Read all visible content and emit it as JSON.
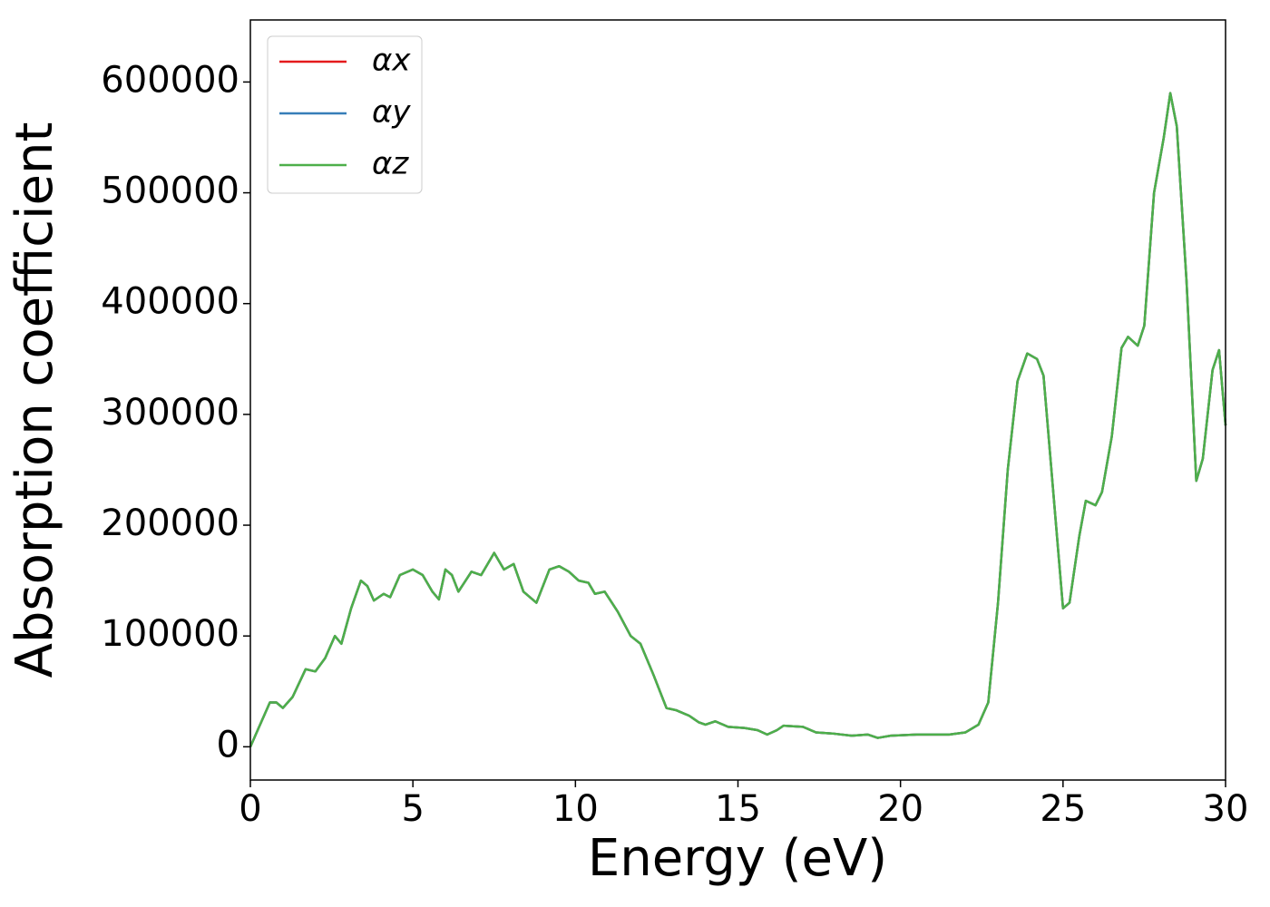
{
  "chart_data": {
    "type": "line",
    "xlabel": "Energy (eV)",
    "ylabel": "Absorption coefficient",
    "x": [
      0,
      0.3,
      0.6,
      0.8,
      1.0,
      1.3,
      1.7,
      2.0,
      2.3,
      2.6,
      2.8,
      3.1,
      3.4,
      3.6,
      3.8,
      4.1,
      4.3,
      4.6,
      5.0,
      5.3,
      5.6,
      5.8,
      6.0,
      6.2,
      6.4,
      6.8,
      7.1,
      7.5,
      7.8,
      8.1,
      8.4,
      8.8,
      9.2,
      9.5,
      9.8,
      10.1,
      10.4,
      10.6,
      10.9,
      11.3,
      11.7,
      12.0,
      12.4,
      12.8,
      13.1,
      13.5,
      13.8,
      14.0,
      14.3,
      14.7,
      15.2,
      15.6,
      15.9,
      16.2,
      16.4,
      17.0,
      17.4,
      17.9,
      18.5,
      19.0,
      19.3,
      19.7,
      20.5,
      21.5,
      22.0,
      22.4,
      22.7,
      23.0,
      23.3,
      23.6,
      23.9,
      24.2,
      24.4,
      24.7,
      25.0,
      25.2,
      25.5,
      25.7,
      26.0,
      26.2,
      26.5,
      26.8,
      27.0,
      27.3,
      27.5,
      27.8,
      28.1,
      28.3,
      28.5,
      28.8,
      29.1,
      29.3,
      29.6,
      29.8,
      30.0
    ],
    "series": [
      {
        "name": "αx",
        "color": "#e41a1c",
        "values": [
          0,
          20000,
          40000,
          40000,
          35000,
          45000,
          70000,
          68000,
          80000,
          100000,
          93000,
          125000,
          150000,
          145000,
          132000,
          138000,
          135000,
          155000,
          160000,
          155000,
          140000,
          133000,
          160000,
          155000,
          140000,
          158000,
          155000,
          175000,
          160000,
          165000,
          140000,
          130000,
          160000,
          163000,
          158000,
          150000,
          148000,
          138000,
          140000,
          122000,
          100000,
          93000,
          65000,
          35000,
          33000,
          28000,
          22000,
          20000,
          23000,
          18000,
          17000,
          15000,
          11000,
          15000,
          19000,
          18000,
          13000,
          12000,
          10000,
          11000,
          8000,
          10000,
          11000,
          11000,
          13000,
          20000,
          40000,
          130000,
          250000,
          330000,
          355000,
          350000,
          335000,
          230000,
          125000,
          130000,
          190000,
          222000,
          218000,
          230000,
          280000,
          360000,
          370000,
          362000,
          380000,
          500000,
          550000,
          590000,
          560000,
          420000,
          240000,
          260000,
          340000,
          358000,
          290000
        ]
      },
      {
        "name": "αy",
        "color": "#377eb8",
        "values": [
          0,
          20000,
          40000,
          40000,
          35000,
          45000,
          70000,
          68000,
          80000,
          100000,
          93000,
          125000,
          150000,
          145000,
          132000,
          138000,
          135000,
          155000,
          160000,
          155000,
          140000,
          133000,
          160000,
          155000,
          140000,
          158000,
          155000,
          175000,
          160000,
          165000,
          140000,
          130000,
          160000,
          163000,
          158000,
          150000,
          148000,
          138000,
          140000,
          122000,
          100000,
          93000,
          65000,
          35000,
          33000,
          28000,
          22000,
          20000,
          23000,
          18000,
          17000,
          15000,
          11000,
          15000,
          19000,
          18000,
          13000,
          12000,
          10000,
          11000,
          8000,
          10000,
          11000,
          11000,
          13000,
          20000,
          40000,
          130000,
          250000,
          330000,
          355000,
          350000,
          335000,
          230000,
          125000,
          130000,
          190000,
          222000,
          218000,
          230000,
          280000,
          360000,
          370000,
          362000,
          380000,
          500000,
          550000,
          590000,
          560000,
          420000,
          240000,
          260000,
          340000,
          358000,
          290000
        ]
      },
      {
        "name": "αz",
        "color": "#4daf4a",
        "values": [
          0,
          20000,
          40000,
          40000,
          35000,
          45000,
          70000,
          68000,
          80000,
          100000,
          93000,
          125000,
          150000,
          145000,
          132000,
          138000,
          135000,
          155000,
          160000,
          155000,
          140000,
          133000,
          160000,
          155000,
          140000,
          158000,
          155000,
          175000,
          160000,
          165000,
          140000,
          130000,
          160000,
          163000,
          158000,
          150000,
          148000,
          138000,
          140000,
          122000,
          100000,
          93000,
          65000,
          35000,
          33000,
          28000,
          22000,
          20000,
          23000,
          18000,
          17000,
          15000,
          11000,
          15000,
          19000,
          18000,
          13000,
          12000,
          10000,
          11000,
          8000,
          10000,
          11000,
          11000,
          13000,
          20000,
          40000,
          130000,
          250000,
          330000,
          355000,
          350000,
          335000,
          230000,
          125000,
          130000,
          190000,
          222000,
          218000,
          230000,
          280000,
          360000,
          370000,
          362000,
          380000,
          500000,
          550000,
          590000,
          560000,
          420000,
          240000,
          260000,
          340000,
          358000,
          290000
        ]
      }
    ],
    "xlim": [
      0,
      30
    ],
    "xticks": [
      0,
      5,
      10,
      15,
      20,
      25,
      30
    ],
    "ylim": [
      -30000,
      656000
    ],
    "yticks": [
      0,
      100000,
      200000,
      300000,
      400000,
      500000,
      600000
    ],
    "legend": "upper left",
    "grid": false
  }
}
